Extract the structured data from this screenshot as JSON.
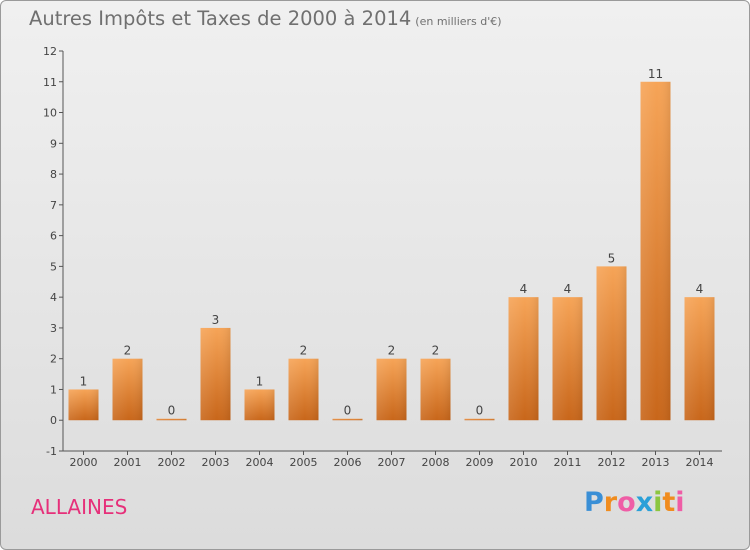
{
  "chart_data": {
    "type": "bar",
    "title": "Autres Impôts et Taxes de 2000 à 2014",
    "subtitle": "(en milliers d'€)",
    "categories": [
      "2000",
      "2001",
      "2002",
      "2003",
      "2004",
      "2005",
      "2006",
      "2007",
      "2008",
      "2009",
      "2010",
      "2011",
      "2012",
      "2013",
      "2014"
    ],
    "values": [
      1,
      2,
      0,
      3,
      1,
      2,
      0,
      2,
      2,
      0,
      4,
      4,
      5,
      11,
      4
    ],
    "ylim": [
      -1,
      12
    ],
    "yticks": [
      -1,
      0,
      1,
      2,
      3,
      4,
      5,
      6,
      7,
      8,
      9,
      10,
      11,
      12
    ],
    "xlabel": "",
    "ylabel": "",
    "grid": false,
    "bar_color_top": "#f6a457",
    "bar_color_bottom": "#c8661a"
  },
  "commune": "ALLAINES",
  "logo": {
    "letters": [
      {
        "ch": "P",
        "color": "#3a8fd6"
      },
      {
        "ch": "r",
        "color": "#f08c1e"
      },
      {
        "ch": "o",
        "color": "#ef5da6"
      },
      {
        "ch": "x",
        "color": "#2aa0d8"
      },
      {
        "ch": "i",
        "color": "#8cc63f"
      },
      {
        "ch": "t",
        "color": "#f08c1e"
      },
      {
        "ch": "i",
        "color": "#ef5da6"
      }
    ]
  }
}
